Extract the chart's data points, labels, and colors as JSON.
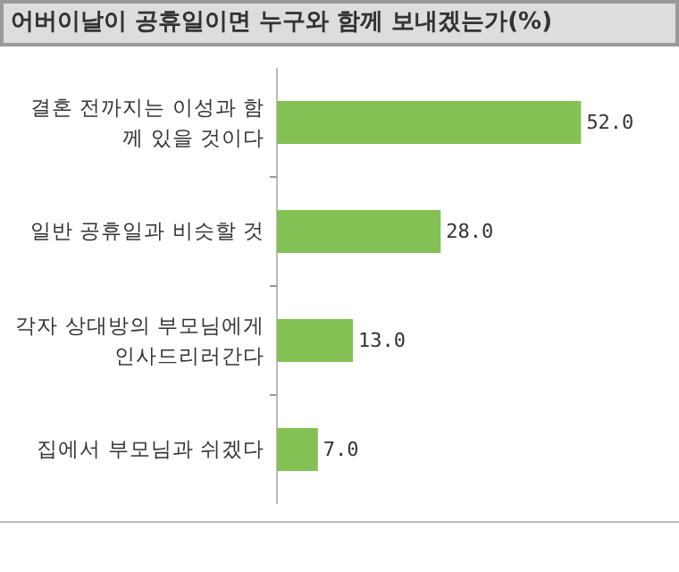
{
  "chart_data": {
    "type": "bar",
    "orientation": "horizontal",
    "title": "어버이날이 공휴일이면 누구와 함께 보내겠는가(%)",
    "categories": [
      "결혼 전까지는 이성과 함께 있을 것이다",
      "일반 공휴일과 비슷할 것",
      "각자 상대방의 부모님에게 인사드리러간다",
      "집에서 부모님과 쉬겠다"
    ],
    "values": [
      52,
      28,
      13,
      7
    ],
    "value_labels": [
      "52.0",
      "28.0",
      "13.0",
      "7.0"
    ],
    "color": "#84c155"
  }
}
